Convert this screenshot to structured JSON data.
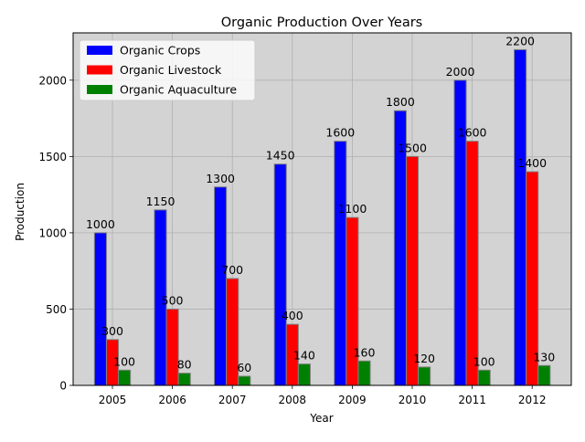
{
  "chart_data": {
    "type": "bar",
    "title": "Organic Production Over Years",
    "xlabel": "Year",
    "ylabel": "Production",
    "categories": [
      "2005",
      "2006",
      "2007",
      "2008",
      "2009",
      "2010",
      "2011",
      "2012"
    ],
    "series": [
      {
        "name": "Organic Crops",
        "color": "#0000ff",
        "values": [
          1000,
          1150,
          1300,
          1450,
          1600,
          1800,
          2000,
          2200
        ]
      },
      {
        "name": "Organic Livestock",
        "color": "#ff0000",
        "values": [
          300,
          500,
          700,
          400,
          1100,
          1500,
          1600,
          1400
        ]
      },
      {
        "name": "Organic Aquaculture",
        "color": "#008000",
        "values": [
          100,
          80,
          60,
          140,
          160,
          120,
          100,
          130
        ]
      }
    ],
    "ylim": [
      0,
      2310
    ],
    "yticks": [
      0,
      500,
      1000,
      1500,
      2000
    ],
    "grid": true,
    "legend_position": "upper-left",
    "background_color": "#d3d3d3",
    "bar_edge_color": "#808080"
  }
}
